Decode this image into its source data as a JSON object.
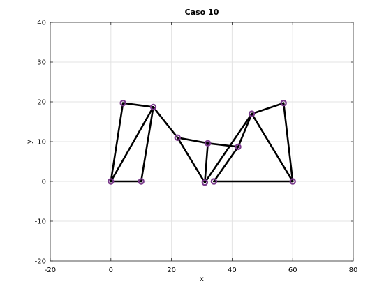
{
  "chart_data": {
    "type": "line",
    "title": "Caso 10",
    "xlabel": "x",
    "ylabel": "y",
    "xlim": [
      -20,
      80
    ],
    "ylim": [
      -20,
      40
    ],
    "xticks": [
      -20,
      0,
      20,
      40,
      60,
      80
    ],
    "yticks": [
      -20,
      -10,
      0,
      10,
      20,
      30,
      40
    ],
    "xtick_labels": [
      "-20",
      "0",
      "20",
      "40",
      "60",
      "80"
    ],
    "ytick_labels": [
      "-20",
      "-10",
      "0",
      "10",
      "20",
      "30",
      "40"
    ],
    "grid": true,
    "nodes": [
      {
        "x": 0,
        "y": 0
      },
      {
        "x": 10,
        "y": 0
      },
      {
        "x": 4,
        "y": 19.7
      },
      {
        "x": 14,
        "y": 18.7
      },
      {
        "x": 22,
        "y": 11
      },
      {
        "x": 31,
        "y": -0.3
      },
      {
        "x": 32,
        "y": 9.6
      },
      {
        "x": 34,
        "y": 0
      },
      {
        "x": 42,
        "y": 8.7
      },
      {
        "x": 46.5,
        "y": 17
      },
      {
        "x": 57,
        "y": 19.7
      },
      {
        "x": 60,
        "y": 0
      }
    ],
    "edges": [
      [
        0,
        1
      ],
      [
        0,
        2
      ],
      [
        0,
        3
      ],
      [
        2,
        3
      ],
      [
        1,
        3
      ],
      [
        3,
        4
      ],
      [
        4,
        5
      ],
      [
        4,
        6
      ],
      [
        5,
        6
      ],
      [
        6,
        8
      ],
      [
        5,
        9
      ],
      [
        7,
        8
      ],
      [
        7,
        11
      ],
      [
        8,
        9
      ],
      [
        9,
        10
      ],
      [
        9,
        11
      ],
      [
        10,
        11
      ]
    ],
    "line_color": "#000000",
    "marker_color": "#7a3a8c",
    "grid_color": "#e3e3e3"
  }
}
